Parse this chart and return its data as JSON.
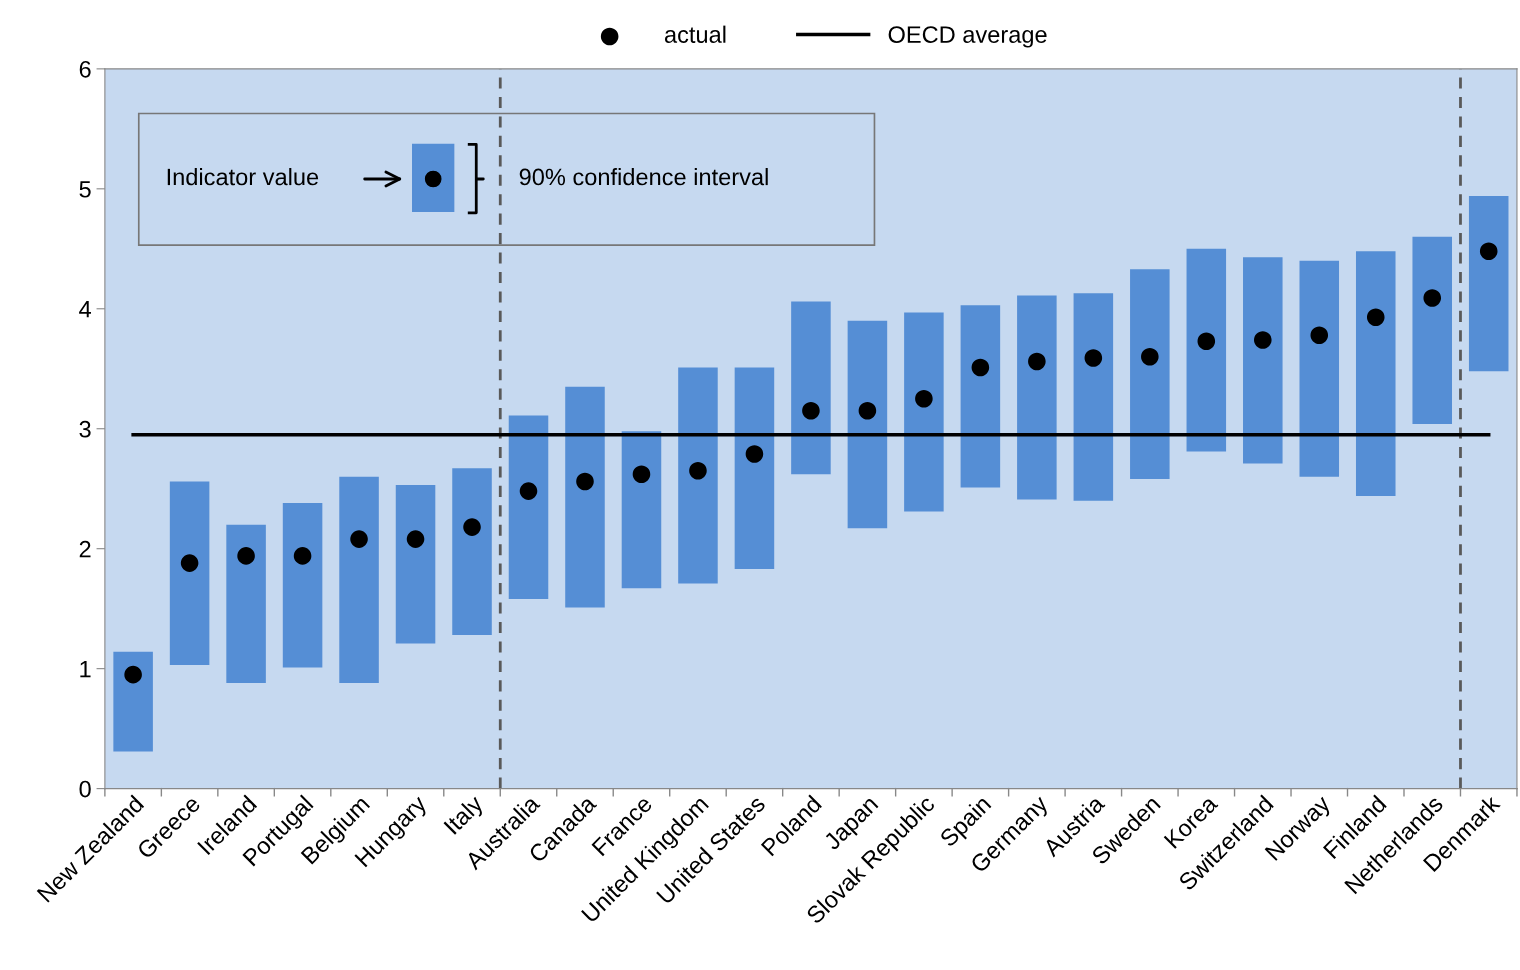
{
  "chart_data": {
    "type": "bar",
    "categories": [
      "New Zealand",
      "Greece",
      "Ireland",
      "Portugal",
      "Belgium",
      "Hungary",
      "Italy",
      "Australia",
      "Canada",
      "France",
      "United Kingdom",
      "United States",
      "Poland",
      "Japan",
      "Slovak Republic",
      "Spain",
      "Germany",
      "Austria",
      "Sweden",
      "Korea",
      "Switzerland",
      "Norway",
      "Finland",
      "Netherlands",
      "Denmark"
    ],
    "series": [
      {
        "color": "#558ed5",
        "base": [
          0.31,
          1.03,
          0.88,
          1.01,
          0.88,
          1.21,
          1.28,
          1.58,
          1.51,
          1.67,
          1.71,
          1.83,
          2.62,
          2.17,
          2.31,
          2.51,
          2.41,
          2.4,
          2.58,
          2.81,
          2.71,
          2.6,
          2.44,
          3.04,
          3.48
        ],
        "values": [
          0.83,
          1.53,
          1.32,
          1.37,
          1.72,
          1.32,
          1.39,
          1.53,
          1.84,
          1.31,
          1.8,
          1.68,
          1.44,
          1.73,
          1.66,
          1.52,
          1.7,
          1.73,
          1.75,
          1.69,
          1.72,
          1.8,
          2.04,
          1.56,
          1.46
        ]
      },
      {
        "type": "scatter",
        "name": "actual",
        "color": "#000000",
        "marker": "circle",
        "values": [
          0.95,
          1.88,
          1.94,
          1.94,
          2.08,
          2.08,
          2.18,
          2.48,
          2.56,
          2.62,
          2.65,
          2.79,
          3.15,
          3.15,
          3.25,
          3.51,
          3.56,
          3.59,
          3.6,
          3.73,
          3.74,
          3.78,
          3.93,
          4.09,
          4.48
        ]
      },
      {
        "type": "line",
        "name": "OECD average",
        "color": "#000000",
        "line_style": "solid",
        "values": [
          2.95,
          2.95,
          2.95,
          2.95,
          2.95,
          2.95,
          2.95,
          2.95,
          2.95,
          2.95,
          2.95,
          2.95,
          2.95,
          2.95,
          2.95,
          2.95,
          2.95,
          2.95,
          2.95,
          2.95,
          2.95,
          2.95,
          2.95,
          2.95,
          2.95
        ]
      }
    ],
    "ylim": [
      0,
      6
    ],
    "yticks": [
      0,
      1,
      2,
      3,
      4,
      5,
      6
    ],
    "grid": false,
    "legend": "top",
    "annotations": [
      "Indicator value",
      "90% confidence interval"
    ]
  }
}
